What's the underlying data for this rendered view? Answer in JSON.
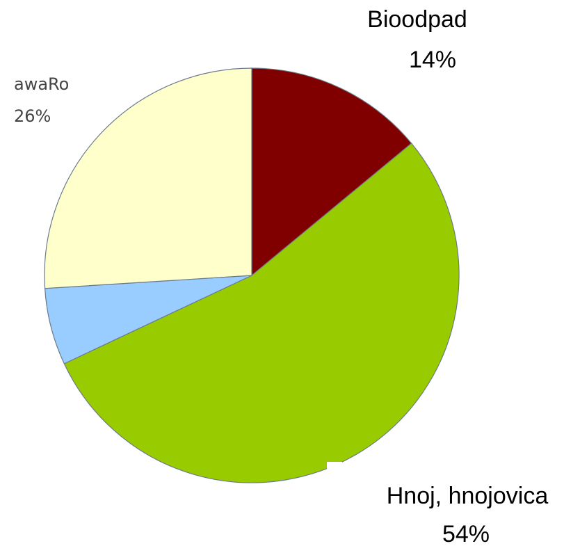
{
  "chart_data": {
    "type": "pie",
    "categories": [
      "Bioodpad",
      "Hnoj, hnojovica",
      null,
      "awaRo"
    ],
    "values": [
      14,
      54,
      6,
      26
    ],
    "value_labels": [
      "14%",
      "54%",
      null,
      "26%"
    ],
    "colors": [
      "#800000",
      "#99cc00",
      "#99ccff",
      "#ffffcc"
    ]
  }
}
